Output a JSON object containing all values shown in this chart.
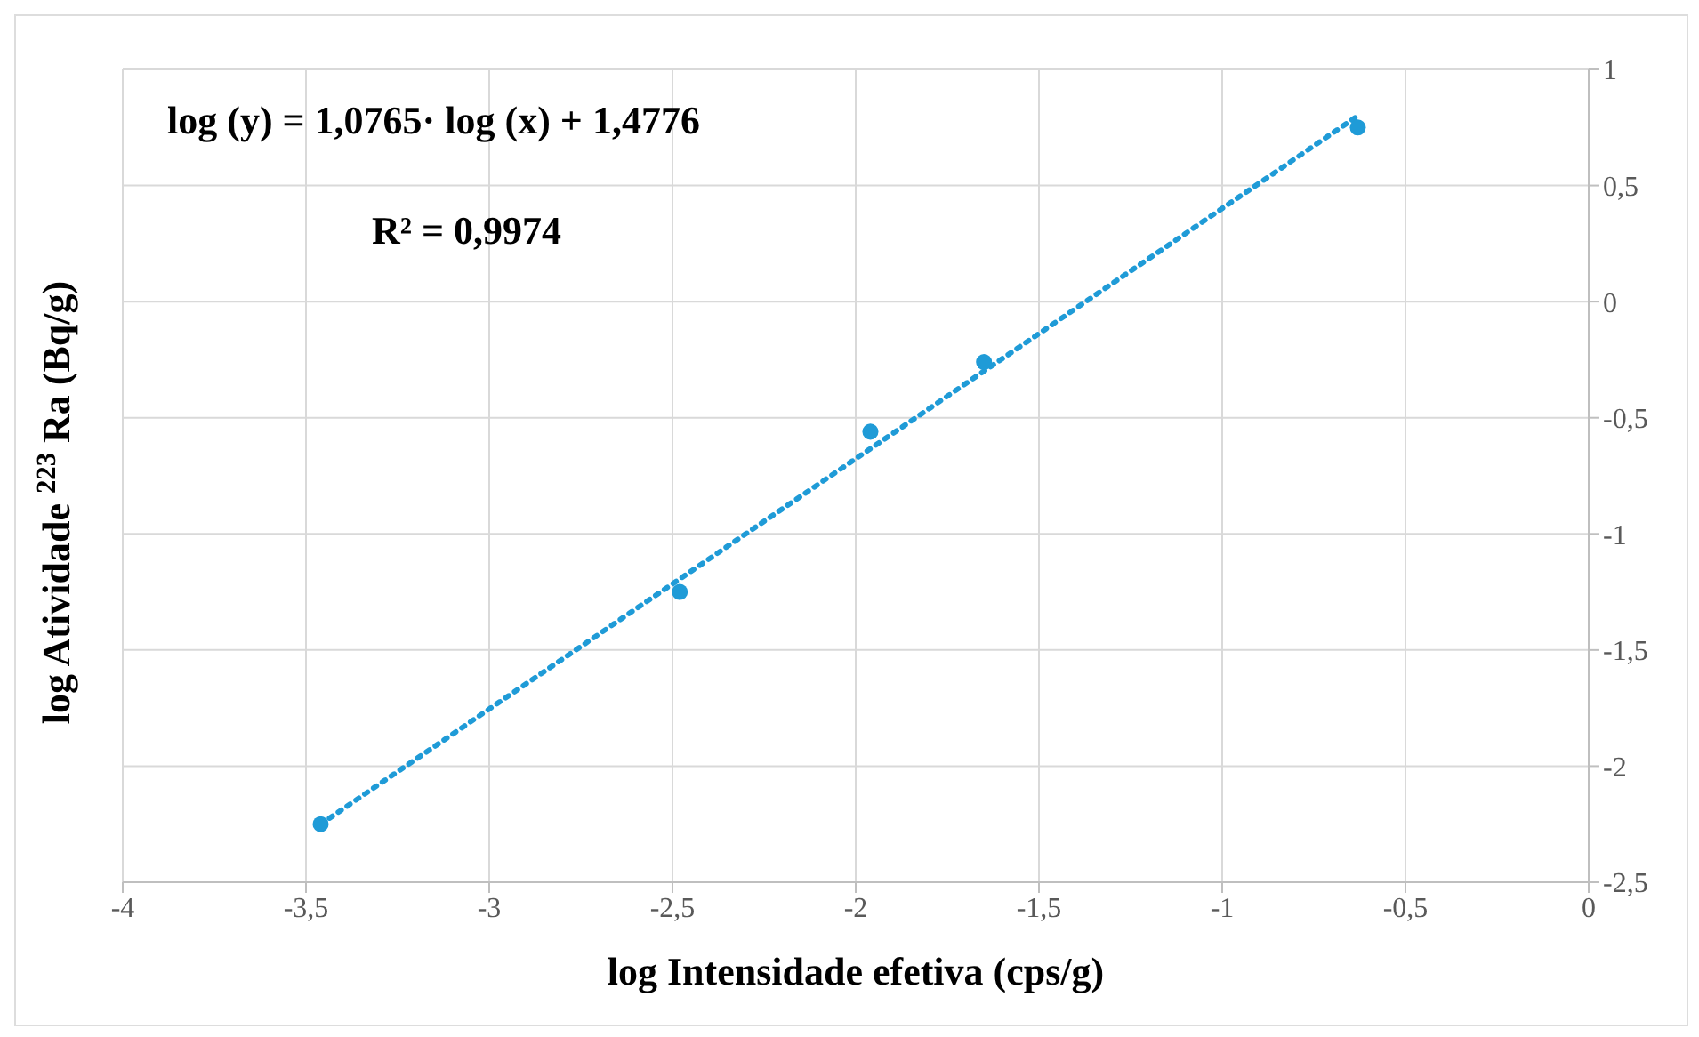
{
  "chart_data": {
    "type": "scatter",
    "xlabel": "log Intensidade efetiva (cps/g)",
    "ylabel": "log Atividade $^{223}$Ra (Bq/g)",
    "annotations": [
      "log (y) = 1,0765· log (x) + 1,4776",
      "R² = 0,9974"
    ],
    "series": [
      {
        "color": "#1f9bd7",
        "x": [
          -3.46,
          -2.48,
          -1.96,
          -1.65,
          -0.63
        ],
        "values": [
          -2.25,
          -1.25,
          -0.56,
          -0.26,
          0.75
        ],
        "marker": "circle"
      },
      {
        "type": "line",
        "color": "#1f9bd7",
        "x": [
          -3.46,
          -0.63
        ],
        "values": [
          -2.25,
          0.8
        ],
        "line_style": "dotted",
        "marker": "none"
      }
    ],
    "xlim": [
      -4,
      0
    ],
    "xticks": [
      -4,
      {
        "value": -3.5,
        "label": "-3,5"
      },
      -3,
      {
        "value": -2.5,
        "label": "-2,5"
      },
      -2,
      {
        "value": -1.5,
        "label": "-1,5"
      },
      -1,
      {
        "value": -0.5,
        "label": "-0,5"
      },
      0
    ],
    "ylim": [
      -2.5,
      1
    ],
    "yticks": [
      {
        "value": -2.5,
        "label": "-2,5"
      },
      -2,
      {
        "value": -1.5,
        "label": "-1,5"
      },
      -1,
      {
        "value": -0.5,
        "label": "-0,5"
      },
      0,
      {
        "value": 0.5,
        "label": "0,5"
      },
      1
    ],
    "grid": true
  }
}
